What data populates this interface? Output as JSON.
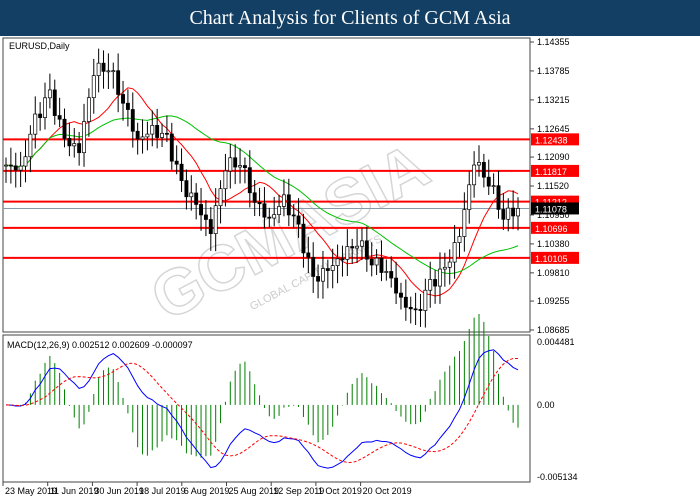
{
  "header": {
    "title": "Chart Analysis for Clients of GCM Asia"
  },
  "watermark": {
    "text": "GCMASIA",
    "subtext": "GLOBAL CAPITAL MARKETS"
  },
  "chart_data": [
    {
      "type": "candlestick",
      "symbol_label": "EURUSD,Daily",
      "ylim": [
        1.08685,
        1.14355
      ],
      "y_ticks": [
        "1.14355",
        "1.13785",
        "1.13215",
        "1.12645",
        "1.12090",
        "1.11520",
        "1.10950",
        "1.10380",
        "1.09810",
        "1.09255",
        "1.08685"
      ],
      "x_ticks": [
        "23 May 2019",
        "11 Jun 2019",
        "30 Jun 2019",
        "18 Jul 2019",
        "6 Aug 2019",
        "25 Aug 2019",
        "12 Sep 2019",
        "1 Oct 2019",
        "20 Oct 2019"
      ],
      "approx_close_path": [
        1.11932,
        1.11833,
        1.12818,
        1.13311,
        1.12424,
        1.12227,
        1.13803,
        1.13902,
        1.13212,
        1.12424,
        1.12621,
        1.12424,
        1.11538,
        1.11144,
        1.10651,
        1.11932,
        1.1203,
        1.11242,
        1.10849,
        1.11242,
        1.10651,
        1.09666,
        1.09863,
        1.10159,
        1.10454,
        1.10061,
        1.09863,
        1.09272,
        1.08977,
        1.09568,
        1.09863,
        1.10553,
        1.1203,
        1.11636,
        1.10947,
        1.11078
      ],
      "current_price": "1.11078",
      "levels": [
        "1.12438",
        "1.11817",
        "1.11212",
        "1.10696",
        "1.10105"
      ],
      "moving_averages": [
        {
          "color": "#ff0000"
        },
        {
          "color": "#00c000"
        }
      ],
      "colors": {
        "level": "#ff0000",
        "candle": "#000000",
        "up_fill": "#ffffff"
      }
    },
    {
      "type": "macd",
      "label": "MACD(12,26,9) 0.002512 0.002609 -0.000097",
      "y_ticks": [
        "0.004481",
        "0.00",
        "-0.005134"
      ],
      "ylim": [
        -0.005134,
        0.004481
      ],
      "colors": {
        "macd": "#0000ff",
        "signal": "#ff0000",
        "histogram": "#008000"
      }
    }
  ]
}
